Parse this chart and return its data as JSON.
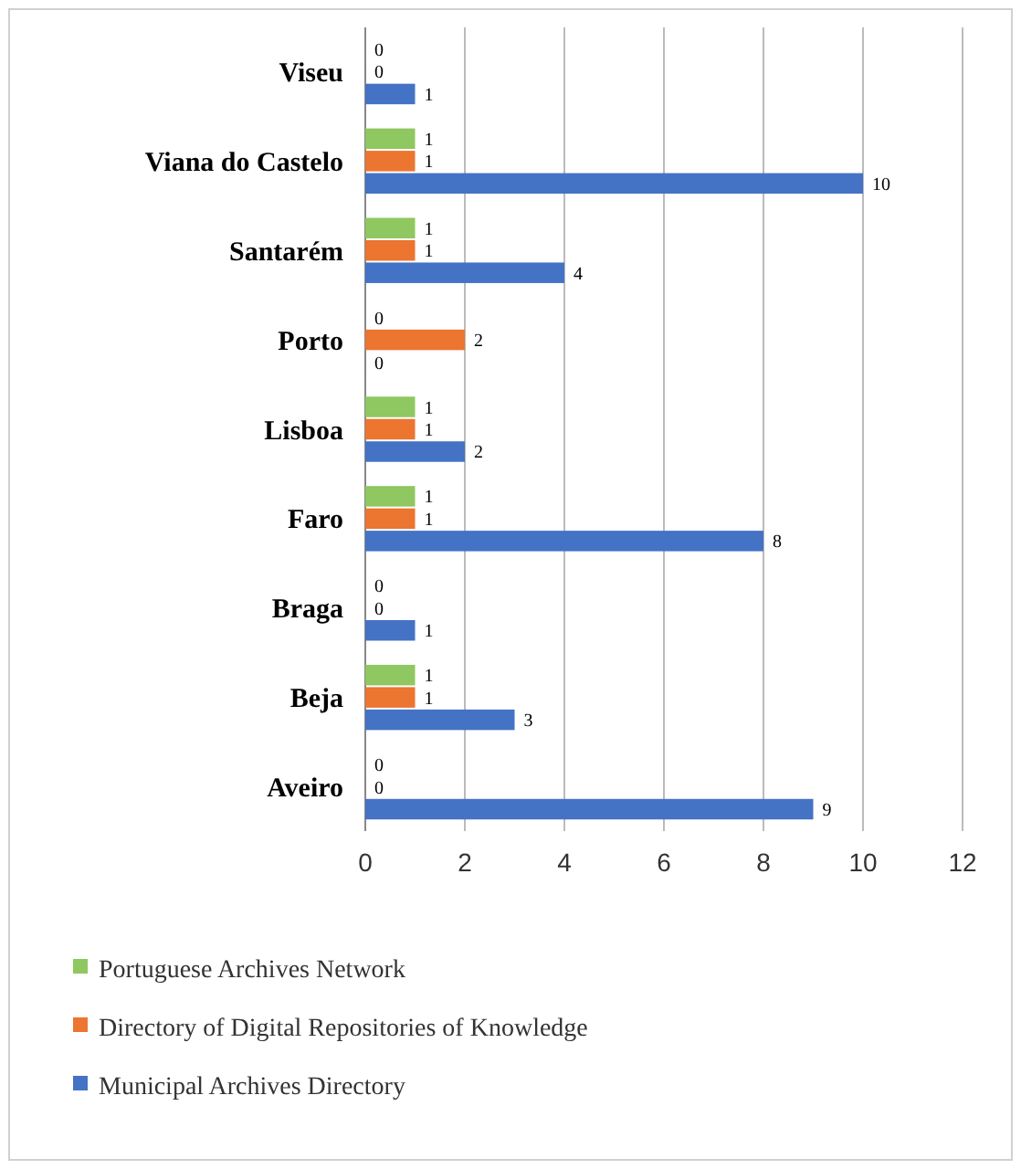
{
  "chart_data": {
    "type": "bar",
    "orientation": "horizontal",
    "categories": [
      "Viseu",
      "Viana do Castelo",
      "Santarém",
      "Porto",
      "Lisboa",
      "Faro",
      "Braga",
      "Beja",
      "Aveiro"
    ],
    "series": [
      {
        "name": "Municipal Archives Directory",
        "color": "#4473c5",
        "values": [
          1,
          10,
          4,
          0,
          2,
          8,
          1,
          3,
          9
        ]
      },
      {
        "name": "Directory of Digital Repositories of Knowledge",
        "color": "#ec7530",
        "values": [
          0,
          1,
          1,
          2,
          1,
          1,
          0,
          1,
          0
        ]
      },
      {
        "name": "Portuguese Archives Network",
        "color": "#8fc760",
        "values": [
          0,
          1,
          1,
          0,
          1,
          1,
          0,
          1,
          0
        ]
      }
    ],
    "xlim": [
      0,
      12
    ],
    "xticks": [
      0,
      2,
      4,
      6,
      8,
      10,
      12
    ],
    "grid": "x",
    "data_labels": true,
    "legend": "bottom"
  }
}
